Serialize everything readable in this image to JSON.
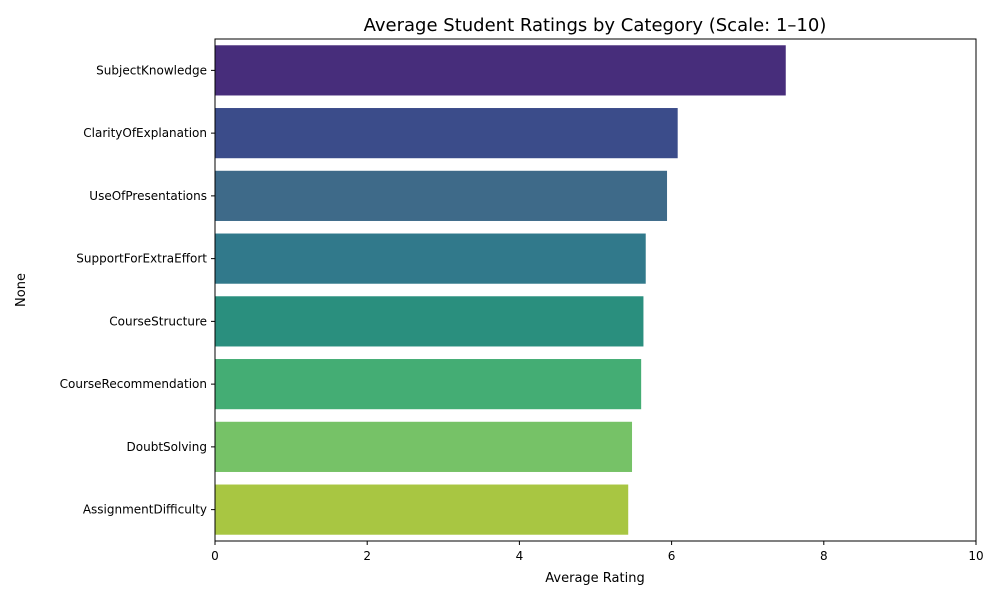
{
  "chart_data": {
    "type": "bar",
    "orientation": "horizontal",
    "title": "Average Student Ratings by Category (Scale: 1–10)",
    "xlabel": "Average Rating",
    "ylabel": "None",
    "xlim": [
      0,
      10
    ],
    "xticks": [
      "0",
      "2",
      "4",
      "6",
      "8",
      "10"
    ],
    "grid": false,
    "categories": [
      "SubjectKnowledge",
      "ClarityOfExplanation",
      "UseOfPresentations",
      "SupportForExtraEffort",
      "CourseStructure",
      "CourseRecommendation",
      "DoubtSolving",
      "AssignmentDifficulty"
    ],
    "values": [
      7.5,
      6.08,
      5.94,
      5.66,
      5.63,
      5.6,
      5.48,
      5.43
    ],
    "colors": [
      "#472d7b",
      "#3b4c8a",
      "#3e6a89",
      "#31798b",
      "#2a8f7e",
      "#44ad74",
      "#76c267",
      "#a8c642"
    ]
  }
}
